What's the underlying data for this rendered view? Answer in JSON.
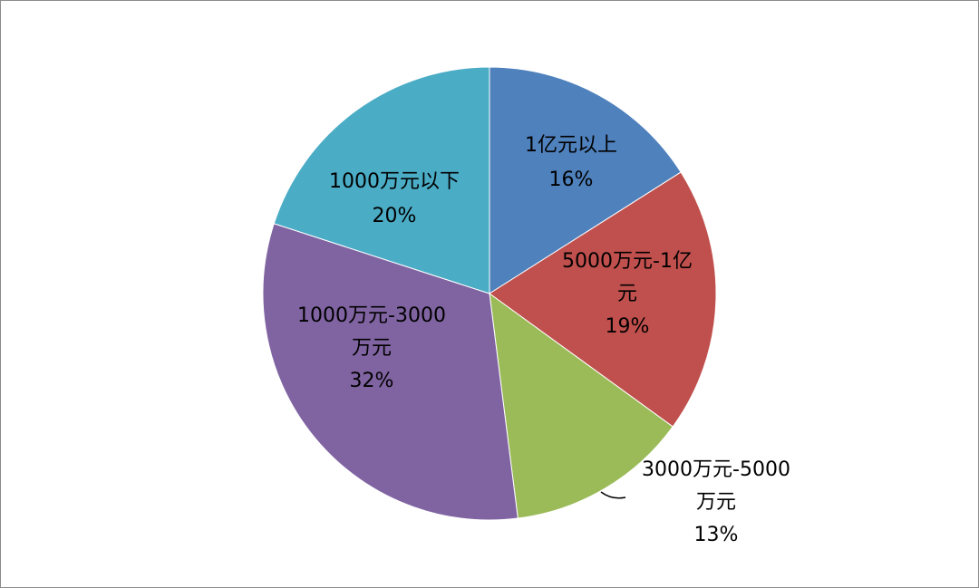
{
  "chart_data": {
    "type": "pie",
    "title": "",
    "slices": [
      {
        "label": "1亿元以上",
        "value": 16,
        "percent_label": "16%",
        "color": "#4F81BD",
        "label_lines": [
          "1亿元以上",
          "16%"
        ]
      },
      {
        "label": "5000万元-1亿元",
        "value": 19,
        "percent_label": "19%",
        "color": "#C0504D",
        "label_lines": [
          "5000万元-1亿",
          "元",
          "19%"
        ]
      },
      {
        "label": "3000万元-5000万元",
        "value": 13,
        "percent_label": "13%",
        "color": "#9BBB59",
        "label_lines": [
          "3000万元-5000",
          "万元",
          "13%"
        ]
      },
      {
        "label": "1000万元-3000万元",
        "value": 32,
        "percent_label": "32%",
        "color": "#8064A2",
        "label_lines": [
          "1000万元-3000",
          "万元",
          "32%"
        ]
      },
      {
        "label": "1000万元以下",
        "value": 20,
        "percent_label": "20%",
        "color": "#4BACC6",
        "label_lines": [
          "1000万元以下",
          "20%"
        ]
      }
    ],
    "start_angle": "12 o'clock",
    "direction": "clockwise",
    "legend": "none"
  }
}
